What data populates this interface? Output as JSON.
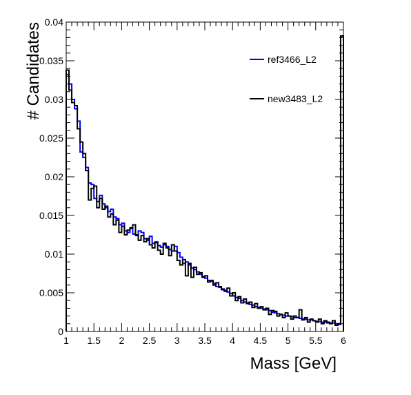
{
  "chart_data": {
    "type": "line",
    "style": "step-histogram",
    "xlabel": "Mass [GeV]",
    "ylabel": "# Candidates",
    "xlim": [
      1,
      6
    ],
    "ylim": [
      0,
      0.04
    ],
    "x_ticks": [
      "1",
      "1.5",
      "2",
      "2.5",
      "3",
      "3.5",
      "4",
      "4.5",
      "5",
      "5.5",
      "6"
    ],
    "y_ticks": [
      "0",
      "0.005",
      "0.01",
      "0.015",
      "0.02",
      "0.025",
      "0.03",
      "0.035",
      "0.04"
    ],
    "bin_edges": {
      "start": 1.0,
      "width": 0.05,
      "count": 100
    },
    "legend_position": "top-right",
    "series": [
      {
        "name": "ref3466_L2",
        "color": "#0000ff",
        "values": [
          0.0332,
          0.032,
          0.03,
          0.0288,
          0.0272,
          0.0232,
          0.0225,
          0.0212,
          0.0192,
          0.019,
          0.0172,
          0.0168,
          0.0176,
          0.0165,
          0.016,
          0.0155,
          0.0158,
          0.0148,
          0.0146,
          0.0138,
          0.014,
          0.013,
          0.0128,
          0.0133,
          0.0126,
          0.0124,
          0.013,
          0.0128,
          0.012,
          0.0118,
          0.0123,
          0.0114,
          0.0116,
          0.0111,
          0.0109,
          0.0112,
          0.011,
          0.0106,
          0.0104,
          0.011,
          0.0102,
          0.0096,
          0.0088,
          0.009,
          0.0086,
          0.0082,
          0.008,
          0.0077,
          0.0074,
          0.0071,
          0.0069,
          0.0066,
          0.0065,
          0.0062,
          0.0058,
          0.0057,
          0.0055,
          0.0053,
          0.0051,
          0.0049,
          0.0046,
          0.0044,
          0.0043,
          0.004,
          0.0038,
          0.0037,
          0.0035,
          0.0034,
          0.0032,
          0.0031,
          0.003,
          0.0029,
          0.0028,
          0.0027,
          0.0025,
          0.0024,
          0.0023,
          0.0022,
          0.0021,
          0.002,
          0.002,
          0.0019,
          0.0018,
          0.0018,
          0.0017,
          0.0016,
          0.0016,
          0.0015,
          0.0015,
          0.0014,
          0.0013,
          0.0013,
          0.0012,
          0.0012,
          0.0011,
          0.0011,
          0.0011,
          0.001,
          0.0009,
          0.0382
        ]
      },
      {
        "name": "new3483_L2",
        "color": "#000000",
        "values": [
          0.0338,
          0.0312,
          0.0296,
          0.0292,
          0.0262,
          0.0245,
          0.023,
          0.0208,
          0.017,
          0.0185,
          0.0188,
          0.016,
          0.0172,
          0.0158,
          0.0162,
          0.0148,
          0.0152,
          0.0138,
          0.0144,
          0.0128,
          0.0136,
          0.0125,
          0.0131,
          0.0134,
          0.0138,
          0.0125,
          0.0118,
          0.0124,
          0.0116,
          0.012,
          0.0112,
          0.0108,
          0.0115,
          0.0105,
          0.01,
          0.0114,
          0.0108,
          0.0098,
          0.0112,
          0.0104,
          0.0092,
          0.0086,
          0.0093,
          0.0072,
          0.0088,
          0.007,
          0.0083,
          0.0074,
          0.0076,
          0.007,
          0.0072,
          0.0064,
          0.0066,
          0.006,
          0.0063,
          0.0058,
          0.0054,
          0.0052,
          0.0056,
          0.0046,
          0.005,
          0.004,
          0.0045,
          0.0037,
          0.0042,
          0.0036,
          0.0038,
          0.0031,
          0.0036,
          0.003,
          0.0032,
          0.0028,
          0.003,
          0.0022,
          0.0027,
          0.0026,
          0.002,
          0.0022,
          0.0018,
          0.0024,
          0.002,
          0.0016,
          0.002,
          0.0018,
          0.0028,
          0.0015,
          0.0018,
          0.0012,
          0.0016,
          0.0014,
          0.0012,
          0.0016,
          0.001,
          0.0014,
          0.0012,
          0.001,
          0.0014,
          0.0008,
          0.001,
          0.0382
        ]
      }
    ]
  }
}
